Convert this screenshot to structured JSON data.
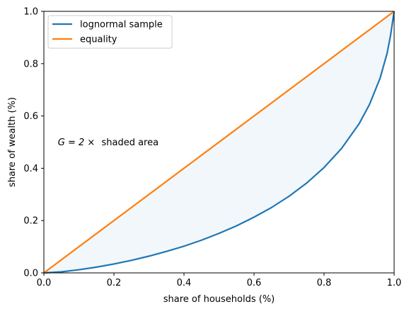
{
  "chart_data": {
    "type": "line",
    "title": "",
    "xlabel": "share of households (%)",
    "ylabel": "share of wealth (%)",
    "xlim": [
      0.0,
      1.0
    ],
    "ylim": [
      0.0,
      1.0
    ],
    "xticks": [
      "0.0",
      "0.2",
      "0.4",
      "0.6",
      "0.8",
      "1.0"
    ],
    "yticks": [
      "0.0",
      "0.2",
      "0.4",
      "0.6",
      "0.8",
      "1.0"
    ],
    "grid": false,
    "legend_position": "upper-left",
    "fill_between": {
      "lower": "lognormal sample",
      "upper": "equality",
      "color": "#1f77b4",
      "alpha": 0.06
    },
    "annotation": {
      "text_math": "G = 2 ×",
      "text_plain": "shaded area",
      "x": 0.04,
      "y": 0.5
    },
    "series": [
      {
        "name": "lognormal sample",
        "color": "#1f77b4",
        "x": [
          0.0,
          0.05,
          0.1,
          0.15,
          0.2,
          0.25,
          0.3,
          0.35,
          0.4,
          0.45,
          0.5,
          0.55,
          0.6,
          0.65,
          0.7,
          0.75,
          0.8,
          0.85,
          0.9,
          0.93,
          0.96,
          0.98,
          0.99,
          1.0
        ],
        "y": [
          0.0,
          0.004,
          0.012,
          0.022,
          0.034,
          0.048,
          0.064,
          0.082,
          0.102,
          0.125,
          0.151,
          0.18,
          0.213,
          0.25,
          0.293,
          0.343,
          0.403,
          0.476,
          0.57,
          0.645,
          0.745,
          0.84,
          0.91,
          1.0
        ]
      },
      {
        "name": "equality",
        "color": "#ff7f0e",
        "x": [
          0.0,
          1.0
        ],
        "y": [
          0.0,
          1.0
        ]
      }
    ]
  }
}
